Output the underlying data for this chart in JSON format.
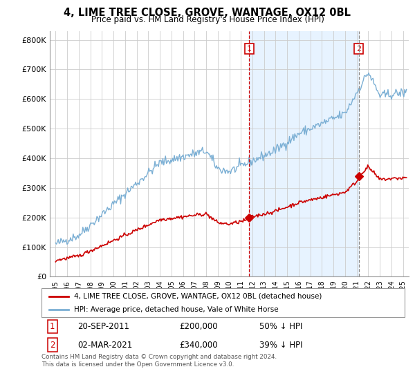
{
  "title": "4, LIME TREE CLOSE, GROVE, WANTAGE, OX12 0BL",
  "subtitle": "Price paid vs. HM Land Registry's House Price Index (HPI)",
  "ylabel_ticks": [
    "£0",
    "£100K",
    "£200K",
    "£300K",
    "£400K",
    "£500K",
    "£600K",
    "£700K",
    "£800K"
  ],
  "ytick_values": [
    0,
    100000,
    200000,
    300000,
    400000,
    500000,
    600000,
    700000,
    800000
  ],
  "ylim": [
    0,
    830000
  ],
  "sale1": {
    "date_num": 2011.72,
    "price": 200000,
    "label": "1",
    "pct": "50% ↓ HPI",
    "date_str": "20-SEP-2011"
  },
  "sale2": {
    "date_num": 2021.17,
    "price": 340000,
    "label": "2",
    "pct": "39% ↓ HPI",
    "date_str": "02-MAR-2021"
  },
  "legend_line1": "4, LIME TREE CLOSE, GROVE, WANTAGE, OX12 0BL (detached house)",
  "legend_line2": "HPI: Average price, detached house, Vale of White Horse",
  "footnote": "Contains HM Land Registry data © Crown copyright and database right 2024.\nThis data is licensed under the Open Government Licence v3.0.",
  "sale_color": "#cc0000",
  "hpi_color": "#7bafd4",
  "vline1_color": "#cc0000",
  "vline2_color": "#888888",
  "shade_color": "#ddeeff",
  "box_color": "#cc0000",
  "background_plot": "#ffffff",
  "background_fig": "#ffffff",
  "grid_color": "#cccccc",
  "xlim_start": 1994.5,
  "xlim_end": 2025.5
}
